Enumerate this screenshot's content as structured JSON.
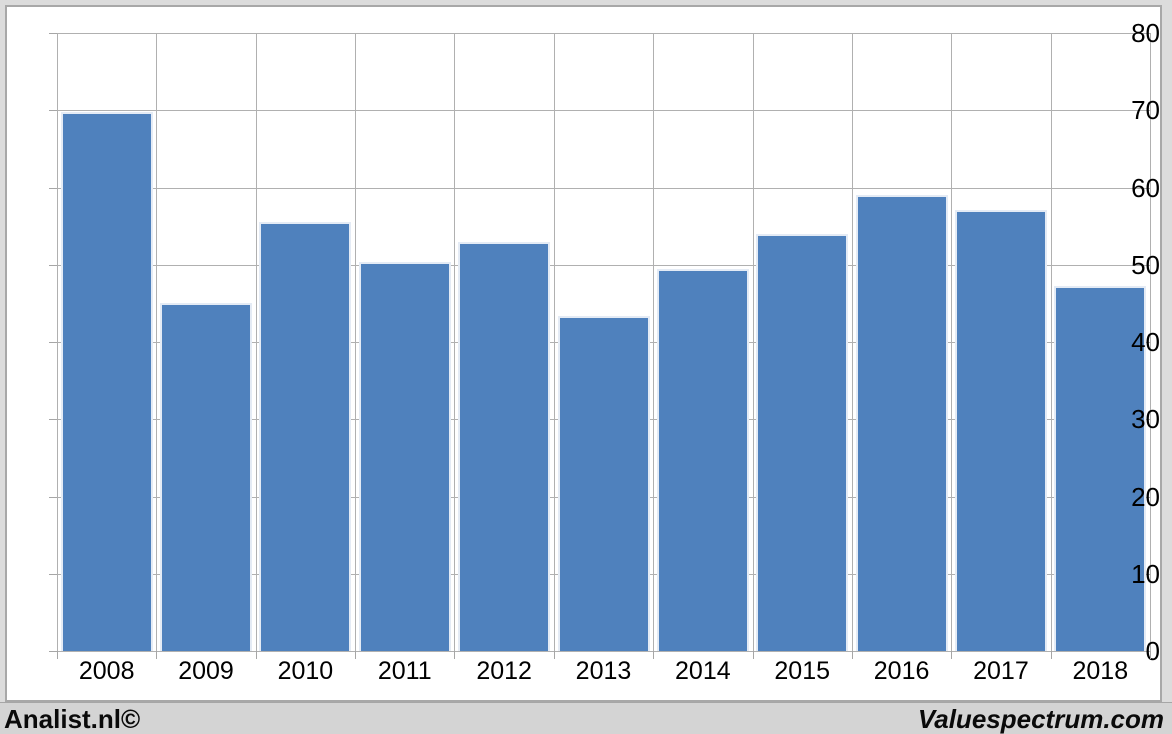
{
  "chart_data": {
    "type": "bar",
    "title": "",
    "xlabel": "",
    "ylabel": "",
    "categories": [
      "2008",
      "2009",
      "2010",
      "2011",
      "2012",
      "2013",
      "2014",
      "2015",
      "2016",
      "2017",
      "2018"
    ],
    "values": [
      69.8,
      45.0,
      55.5,
      50.3,
      52.9,
      43.4,
      49.5,
      54.0,
      59.0,
      57.1,
      47.2
    ],
    "ylim": [
      0,
      80
    ],
    "y_ticks": [
      0,
      10,
      20,
      30,
      40,
      50,
      60,
      70,
      80
    ],
    "grid": true,
    "legend": "none",
    "bar_color": "#4f81bd",
    "gridline_color": "#b0b0b0"
  },
  "footer": {
    "left_text": "Analist.nl©",
    "right_text": "Valuespectrum.com"
  },
  "colors": {
    "bar": "#4f81bd",
    "panel_background": "#ffffff",
    "page_background": "#dcdcdc",
    "footer_strip": "#d4d4d4",
    "grid": "#b0b0b0",
    "border": "#a8a8a8",
    "text": "#000000"
  }
}
